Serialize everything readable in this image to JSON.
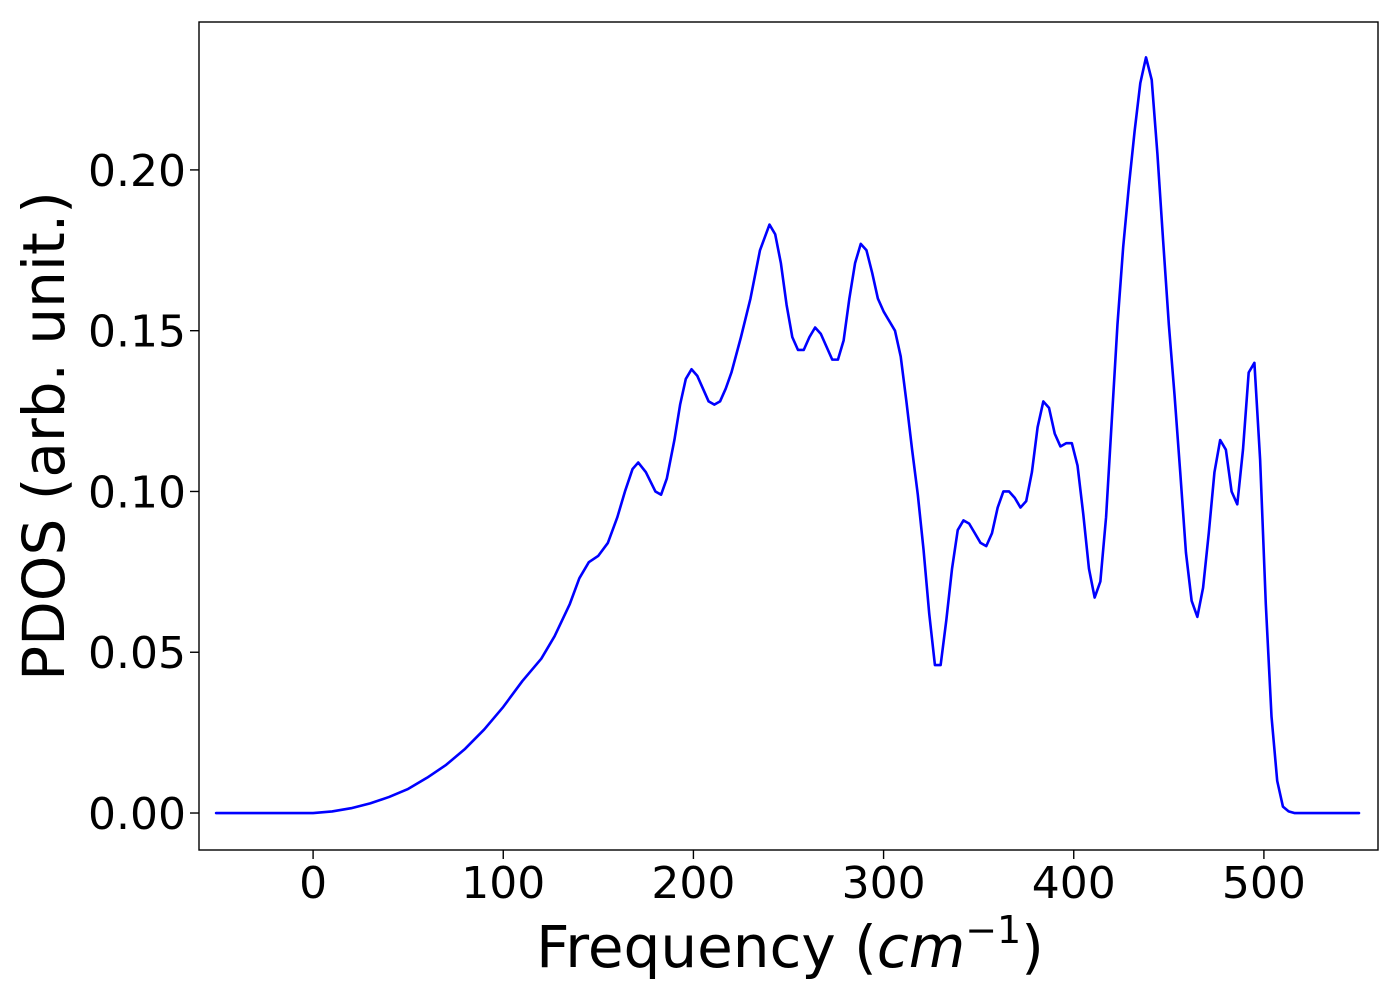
{
  "chart_data": {
    "type": "line",
    "title": "",
    "xlabel": {
      "prefix": "Frequency (",
      "unit": "cm",
      "superscript": "−1",
      "suffix": ")"
    },
    "ylabel": "PDOS (arb. unit.)",
    "xlim": [
      -60,
      560
    ],
    "ylim": [
      -0.0115,
      0.246
    ],
    "xticks": [
      0,
      100,
      200,
      300,
      400,
      500
    ],
    "xtick_labels": [
      "0",
      "100",
      "200",
      "300",
      "400",
      "500"
    ],
    "yticks": [
      0.0,
      0.05,
      0.1,
      0.15,
      0.2
    ],
    "ytick_labels": [
      "0.00",
      "0.05",
      "0.10",
      "0.15",
      "0.20"
    ],
    "grid": false,
    "legend": "none",
    "series": [
      {
        "color": "#0000ff",
        "x": [
          -51,
          -40,
          -20,
          0,
          10,
          20,
          30,
          40,
          50,
          60,
          70,
          80,
          90,
          100,
          110,
          120,
          127,
          135,
          140,
          145,
          150,
          155,
          160,
          164,
          168,
          171,
          175,
          180,
          183,
          186,
          190,
          193,
          196,
          199,
          202,
          205,
          208,
          211,
          214,
          217,
          220,
          225,
          230,
          235,
          240,
          243,
          246,
          249,
          252,
          255,
          258,
          261,
          264,
          267,
          270,
          273,
          276,
          279,
          282,
          285,
          288,
          291,
          294,
          297,
          300,
          303,
          306,
          309,
          312,
          315,
          318,
          321,
          324,
          327,
          330,
          333,
          336,
          339,
          342,
          345,
          348,
          351,
          354,
          357,
          360,
          363,
          366,
          369,
          372,
          375,
          378,
          381,
          384,
          387,
          390,
          393,
          396,
          399,
          402,
          405,
          408,
          411,
          414,
          417,
          420,
          423,
          426,
          429,
          432,
          435,
          438,
          441,
          444,
          447,
          450,
          453,
          456,
          459,
          462,
          465,
          468,
          471,
          474,
          477,
          480,
          483,
          486,
          489,
          492,
          495,
          498,
          501,
          504,
          507,
          510,
          513,
          516,
          520,
          530,
          550
        ],
        "y": [
          0.0,
          0.0,
          0.0,
          0.0,
          0.0005,
          0.0015,
          0.003,
          0.005,
          0.0075,
          0.011,
          0.015,
          0.02,
          0.026,
          0.033,
          0.041,
          0.048,
          0.055,
          0.065,
          0.073,
          0.078,
          0.08,
          0.084,
          0.092,
          0.1,
          0.107,
          0.109,
          0.106,
          0.1,
          0.099,
          0.104,
          0.116,
          0.127,
          0.135,
          0.138,
          0.136,
          0.132,
          0.128,
          0.127,
          0.128,
          0.132,
          0.137,
          0.148,
          0.16,
          0.175,
          0.183,
          0.18,
          0.171,
          0.158,
          0.148,
          0.144,
          0.144,
          0.148,
          0.151,
          0.149,
          0.145,
          0.141,
          0.141,
          0.147,
          0.16,
          0.171,
          0.177,
          0.175,
          0.168,
          0.16,
          0.156,
          0.153,
          0.15,
          0.142,
          0.128,
          0.113,
          0.099,
          0.082,
          0.062,
          0.046,
          0.046,
          0.06,
          0.076,
          0.088,
          0.091,
          0.09,
          0.087,
          0.084,
          0.083,
          0.087,
          0.095,
          0.1,
          0.1,
          0.098,
          0.095,
          0.097,
          0.106,
          0.12,
          0.128,
          0.126,
          0.118,
          0.114,
          0.115,
          0.115,
          0.108,
          0.093,
          0.076,
          0.067,
          0.072,
          0.092,
          0.122,
          0.152,
          0.176,
          0.195,
          0.212,
          0.227,
          0.235,
          0.228,
          0.205,
          0.178,
          0.152,
          0.13,
          0.106,
          0.081,
          0.066,
          0.061,
          0.07,
          0.087,
          0.106,
          0.116,
          0.113,
          0.1,
          0.096,
          0.113,
          0.137,
          0.14,
          0.11,
          0.065,
          0.03,
          0.01,
          0.002,
          0.0005,
          0.0,
          0.0,
          0.0,
          0.0
        ]
      }
    ]
  }
}
